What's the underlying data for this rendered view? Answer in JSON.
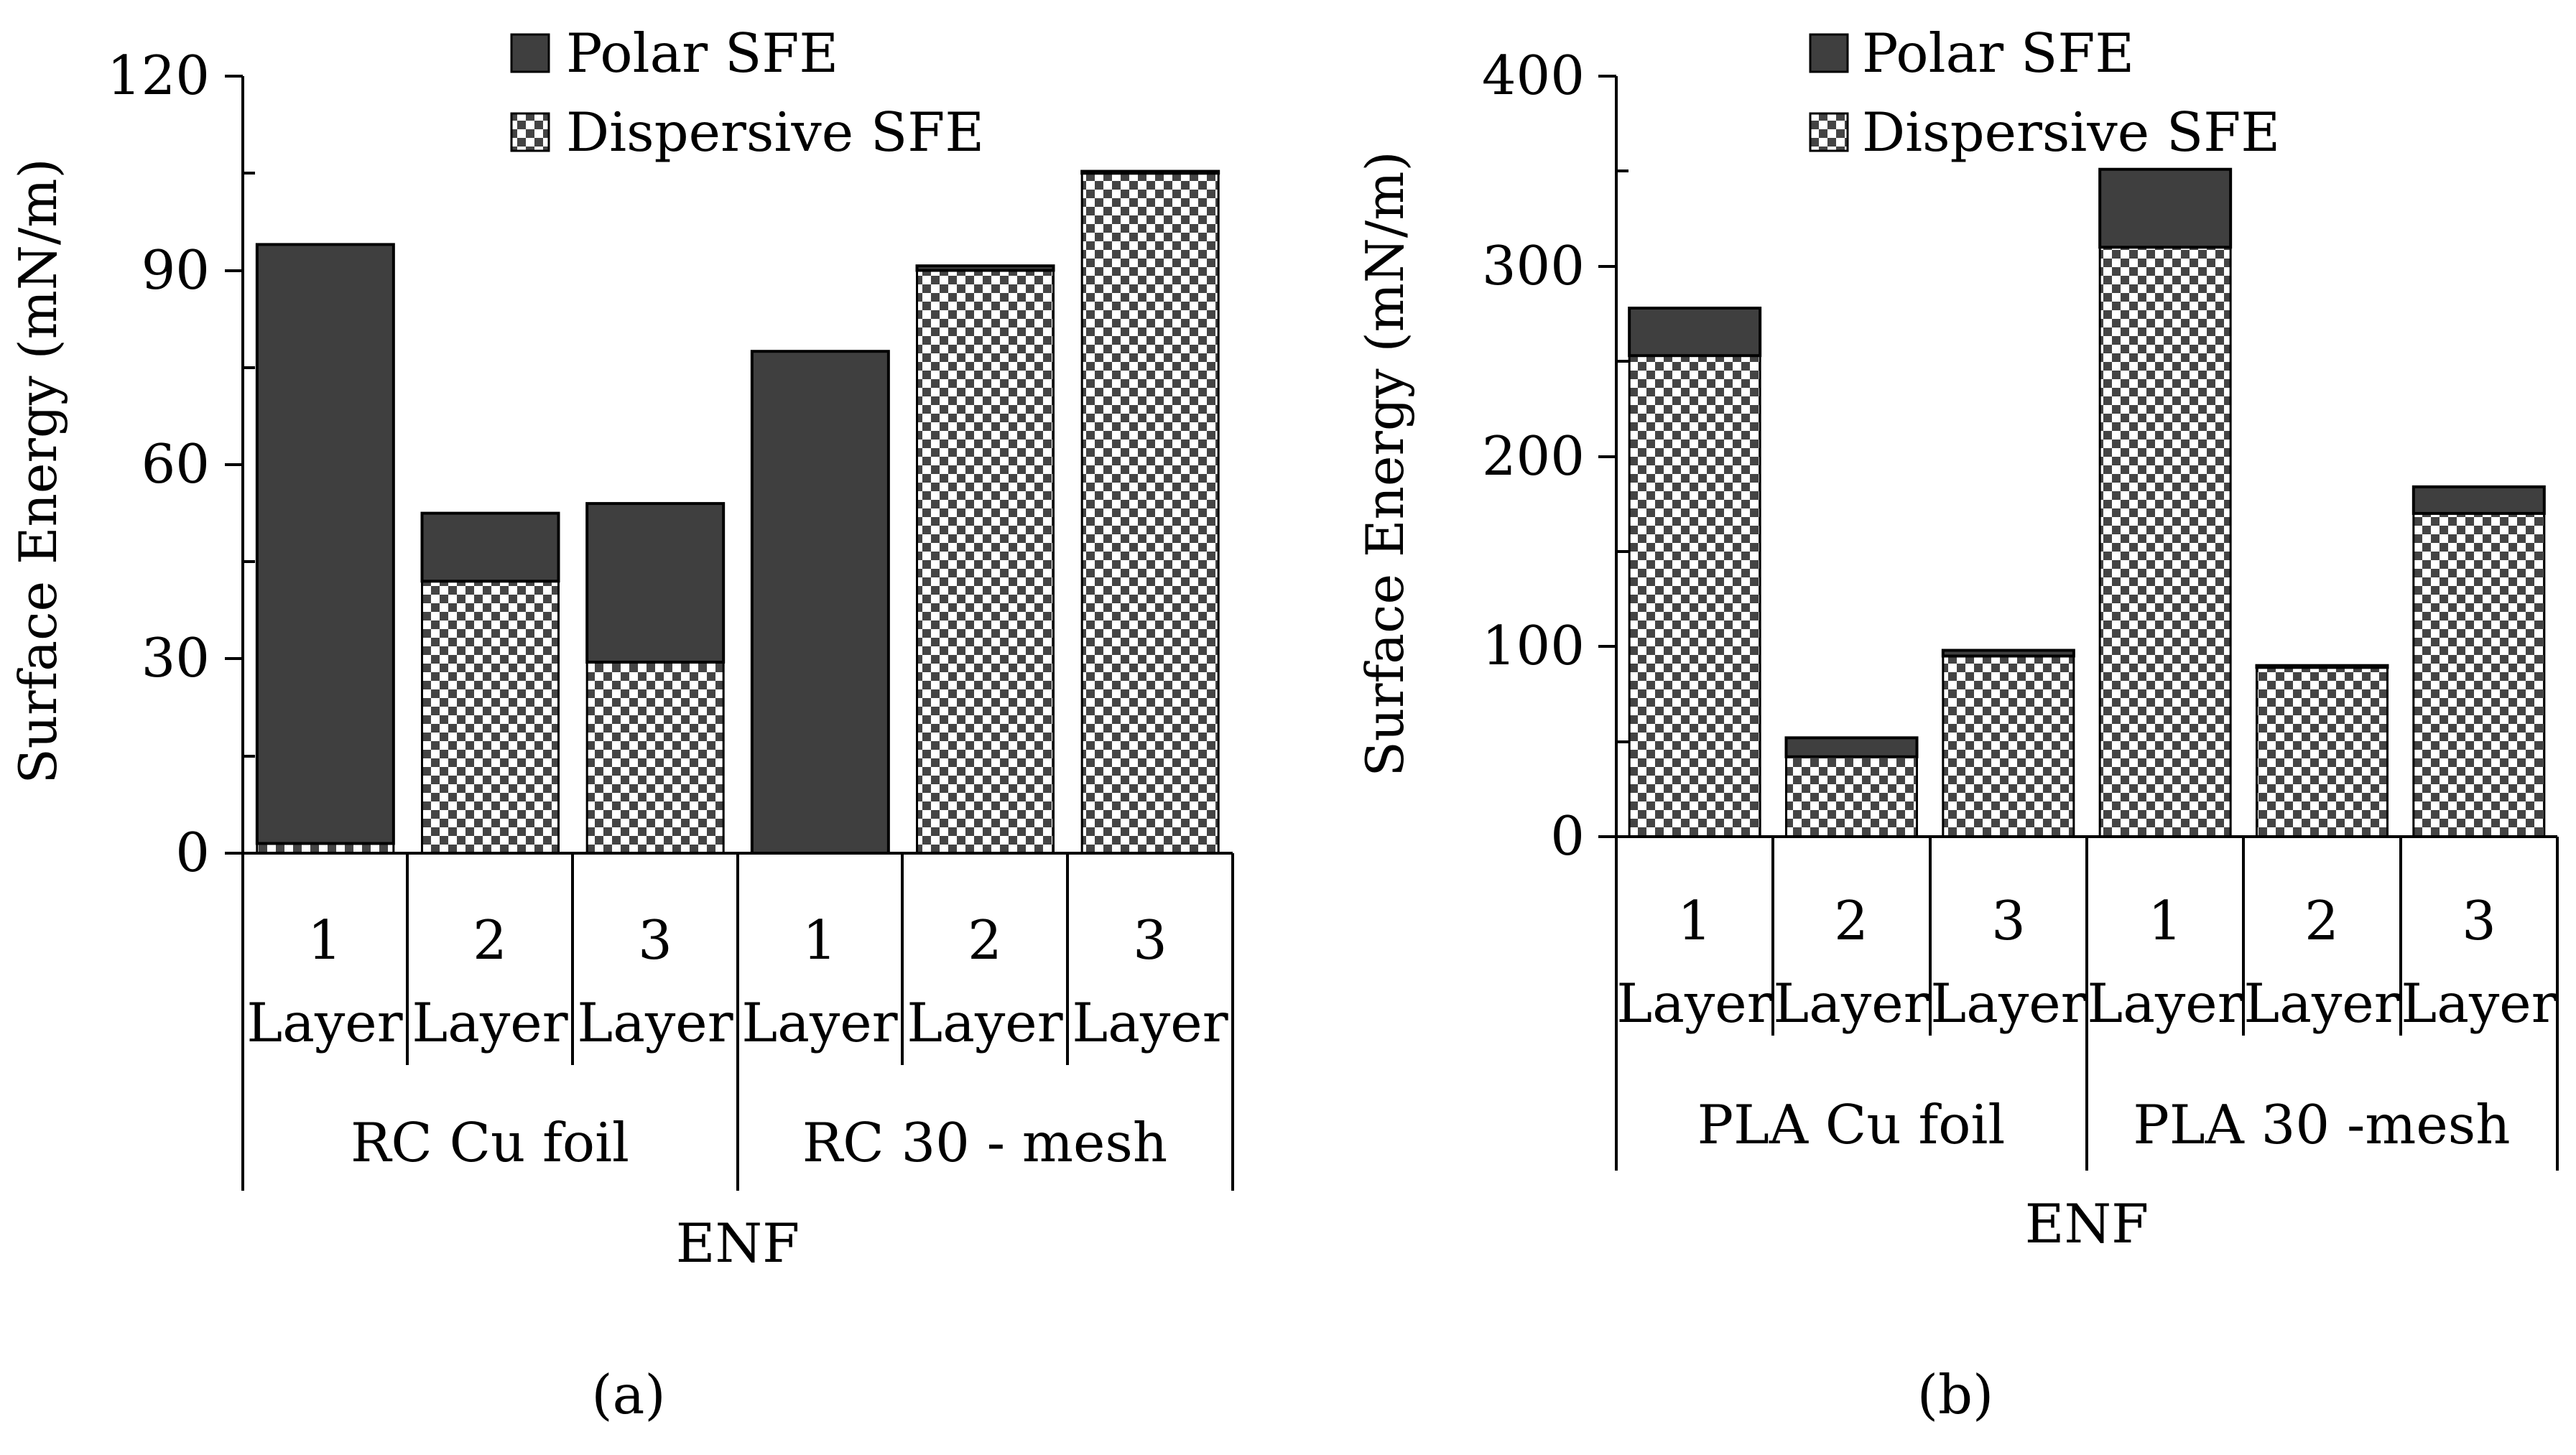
{
  "colors": {
    "polar": "#3f3f3f",
    "dispersive_fill": "#ffffff",
    "dispersive_check": "#444444",
    "axis": "#000000"
  },
  "chart_data": [
    {
      "type": "bar",
      "stacked": true,
      "caption": "(a)",
      "title": "",
      "ylabel": "Surface Energy (mN/m)",
      "xlabel": "ENF",
      "ylim": [
        0,
        120
      ],
      "yticks": [
        "0",
        "30",
        "60",
        "90",
        "120"
      ],
      "legend": [
        "Polar SFE",
        "Dispersive SFE"
      ],
      "groups": [
        "RC Cu foil",
        "RC 30 - mesh"
      ],
      "categories": [
        {
          "num": "1",
          "unit": "Layer"
        },
        {
          "num": "2",
          "unit": "Layer"
        },
        {
          "num": "3",
          "unit": "Layer"
        },
        {
          "num": "1",
          "unit": "Layer"
        },
        {
          "num": "2",
          "unit": "Layer"
        },
        {
          "num": "3",
          "unit": "Layer"
        }
      ],
      "series": [
        {
          "name": "Dispersive SFE",
          "values": [
            1.5,
            42,
            29.5,
            0,
            90,
            105
          ]
        },
        {
          "name": "Polar SFE",
          "values": [
            92.5,
            10.5,
            24.5,
            77.5,
            0.7,
            0.3
          ]
        }
      ]
    },
    {
      "type": "bar",
      "stacked": true,
      "caption": "(b)",
      "title": "",
      "ylabel": "Surface Energy (mN/m)",
      "xlabel": "ENF",
      "ylim": [
        0,
        400
      ],
      "yticks": [
        "0",
        "100",
        "200",
        "300",
        "400"
      ],
      "legend": [
        "Polar SFE",
        "Dispersive SFE"
      ],
      "groups": [
        "PLA Cu foil",
        "PLA 30 -mesh"
      ],
      "categories": [
        {
          "num": "1",
          "unit": "Layer"
        },
        {
          "num": "2",
          "unit": "Layer"
        },
        {
          "num": "3",
          "unit": "Layer"
        },
        {
          "num": "1",
          "unit": "Layer"
        },
        {
          "num": "2",
          "unit": "Layer"
        },
        {
          "num": "3",
          "unit": "Layer"
        }
      ],
      "series": [
        {
          "name": "Dispersive SFE",
          "values": [
            253,
            42,
            95,
            310,
            89,
            170
          ]
        },
        {
          "name": "Polar SFE",
          "values": [
            25,
            10,
            3,
            41,
            1,
            14
          ]
        }
      ]
    }
  ]
}
